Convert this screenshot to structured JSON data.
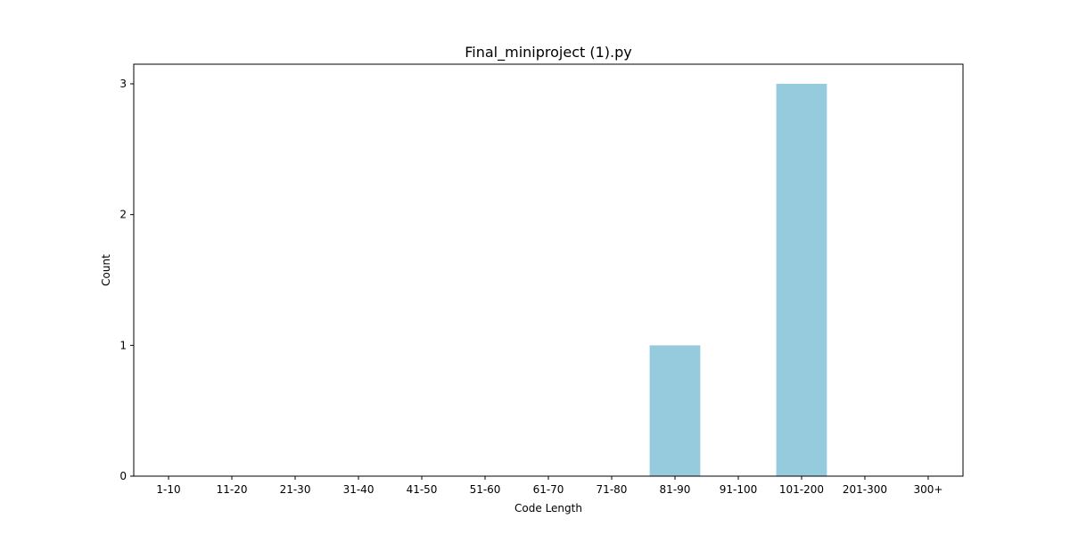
{
  "chart_data": {
    "type": "bar",
    "title": "Final_miniproject (1).py",
    "xlabel": "Code Length",
    "ylabel": "Count",
    "categories": [
      "1-10",
      "11-20",
      "21-30",
      "31-40",
      "41-50",
      "51-60",
      "61-70",
      "71-80",
      "81-90",
      "91-100",
      "101-200",
      "201-300",
      "300+"
    ],
    "values": [
      0,
      0,
      0,
      0,
      0,
      0,
      0,
      0,
      1,
      0,
      3,
      0,
      0
    ],
    "ylim": [
      0,
      3.15
    ],
    "yticks": [
      0,
      1,
      2,
      3
    ],
    "grid": false,
    "bar_color": "#96cadd"
  }
}
